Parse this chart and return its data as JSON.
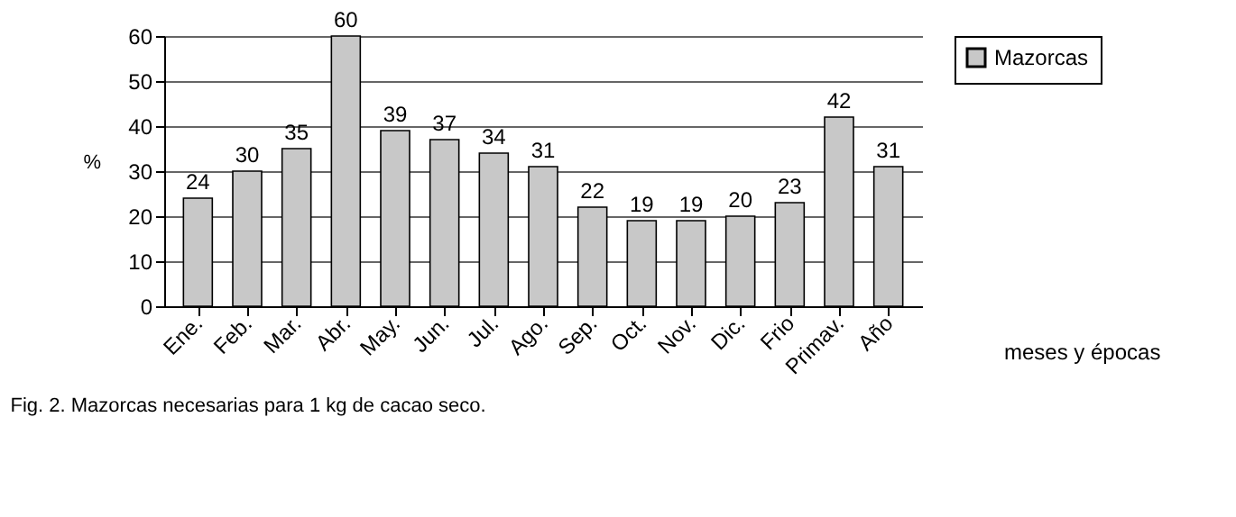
{
  "chart_data": {
    "type": "bar",
    "categories": [
      "Ene.",
      "Feb.",
      "Mar.",
      "Abr.",
      "May.",
      "Jun.",
      "Jul.",
      "Ago.",
      "Sep.",
      "Oct.",
      "Nov.",
      "Dic.",
      "Frio",
      "Primav.",
      "Año"
    ],
    "series": [
      {
        "name": "Mazorcas",
        "color": "#c8c8c8",
        "values": [
          24,
          30,
          35,
          60,
          39,
          37,
          34,
          31,
          22,
          19,
          19,
          20,
          23,
          42,
          31
        ]
      }
    ],
    "ylabel": "%",
    "xlabel": "meses y épocas",
    "ylim": [
      0,
      60
    ],
    "yticks": [
      0,
      10,
      20,
      30,
      40,
      50,
      60
    ],
    "grid": "y",
    "legend": "right",
    "data_labels": true,
    "annotations": [
      "Fig. 2. Mazorcas necesarias para 1 kg de cacao seco."
    ]
  }
}
